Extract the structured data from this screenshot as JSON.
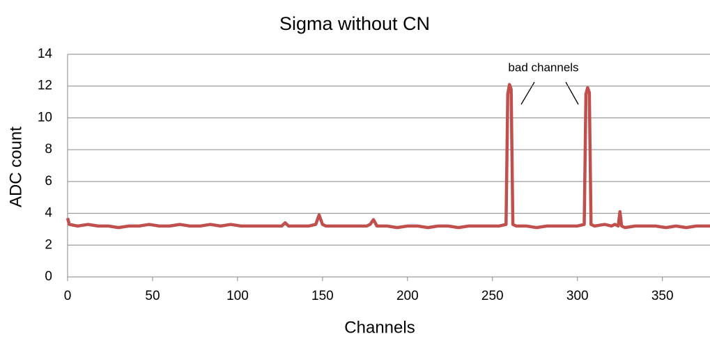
{
  "chart_data": {
    "type": "line",
    "title": "Sigma without CN",
    "x_label": "Channels",
    "y_label": "ADC count",
    "annotation": "bad channels",
    "x": [
      0,
      1,
      6,
      12,
      18,
      24,
      30,
      36,
      42,
      48,
      54,
      60,
      66,
      72,
      78,
      84,
      90,
      96,
      102,
      108,
      114,
      120,
      126,
      128,
      130,
      136,
      142,
      146,
      148,
      150,
      152,
      158,
      164,
      170,
      176,
      178,
      180,
      182,
      188,
      194,
      200,
      206,
      212,
      218,
      224,
      230,
      236,
      242,
      248,
      254,
      258,
      259,
      260,
      261,
      262,
      264,
      270,
      276,
      282,
      288,
      294,
      300,
      304,
      305,
      306,
      307,
      308,
      310,
      316,
      320,
      322,
      324,
      325,
      326,
      328,
      334,
      340,
      346,
      352,
      358,
      364,
      370,
      376,
      378
    ],
    "series": [
      {
        "name": "Sigma",
        "color": "#c0504d",
        "values": [
          3.7,
          3.3,
          3.2,
          3.3,
          3.2,
          3.2,
          3.1,
          3.2,
          3.2,
          3.3,
          3.2,
          3.2,
          3.3,
          3.2,
          3.2,
          3.3,
          3.2,
          3.3,
          3.2,
          3.2,
          3.2,
          3.2,
          3.2,
          3.4,
          3.2,
          3.2,
          3.2,
          3.3,
          3.9,
          3.3,
          3.2,
          3.2,
          3.2,
          3.2,
          3.2,
          3.3,
          3.6,
          3.2,
          3.2,
          3.1,
          3.2,
          3.2,
          3.1,
          3.2,
          3.2,
          3.1,
          3.2,
          3.2,
          3.2,
          3.2,
          3.3,
          11.5,
          12.1,
          11.8,
          3.3,
          3.2,
          3.2,
          3.1,
          3.2,
          3.2,
          3.2,
          3.2,
          3.3,
          11.5,
          11.9,
          11.6,
          3.3,
          3.2,
          3.3,
          3.2,
          3.3,
          3.2,
          4.1,
          3.2,
          3.1,
          3.2,
          3.2,
          3.2,
          3.1,
          3.2,
          3.1,
          3.2,
          3.2,
          3.2
        ]
      }
    ],
    "xlim": [
      0,
      378
    ],
    "xticks": [
      0,
      50,
      100,
      150,
      200,
      250,
      300,
      350
    ],
    "ylim": [
      0,
      14
    ],
    "yticks": [
      0,
      2,
      4,
      6,
      8,
      10,
      12,
      14
    ],
    "grid": true
  }
}
